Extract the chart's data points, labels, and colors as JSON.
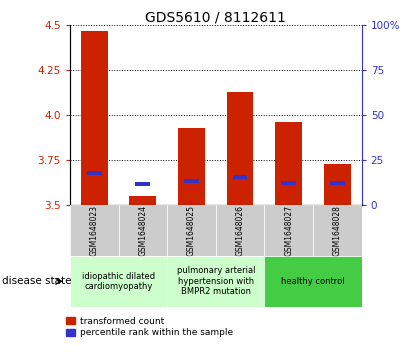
{
  "title": "GDS5610 / 8112611",
  "samples": [
    "GSM1648023",
    "GSM1648024",
    "GSM1648025",
    "GSM1648026",
    "GSM1648027",
    "GSM1648028"
  ],
  "red_values": [
    4.47,
    3.55,
    3.93,
    4.13,
    3.96,
    3.73
  ],
  "blue_values": [
    3.68,
    3.62,
    3.635,
    3.655,
    3.625,
    3.625
  ],
  "ymin": 3.5,
  "ymax": 4.5,
  "yticks": [
    3.5,
    3.75,
    4.0,
    4.25,
    4.5
  ],
  "right_yticks": [
    0,
    25,
    50,
    75,
    100
  ],
  "right_ylabels": [
    "0",
    "25",
    "50",
    "75",
    "100%"
  ],
  "red_color": "#cc2200",
  "blue_color": "#3333cc",
  "bar_width": 0.55,
  "disease_groups": [
    {
      "label": "idiopathic dilated\ncardiomyopathy",
      "color": "#ccffcc",
      "start": 0,
      "end": 2
    },
    {
      "label": "pulmonary arterial\nhypertension with\nBMPR2 mutation",
      "color": "#ccffcc",
      "start": 2,
      "end": 4
    },
    {
      "label": "healthy control",
      "color": "#44cc44",
      "start": 4,
      "end": 6
    }
  ],
  "legend_red": "transformed count",
  "legend_blue": "percentile rank within the sample",
  "disease_state_label": "disease state",
  "title_fontsize": 10,
  "tick_fontsize": 7.5,
  "sample_fontsize": 5.5,
  "group_fontsize": 6.0,
  "legend_fontsize": 6.5
}
